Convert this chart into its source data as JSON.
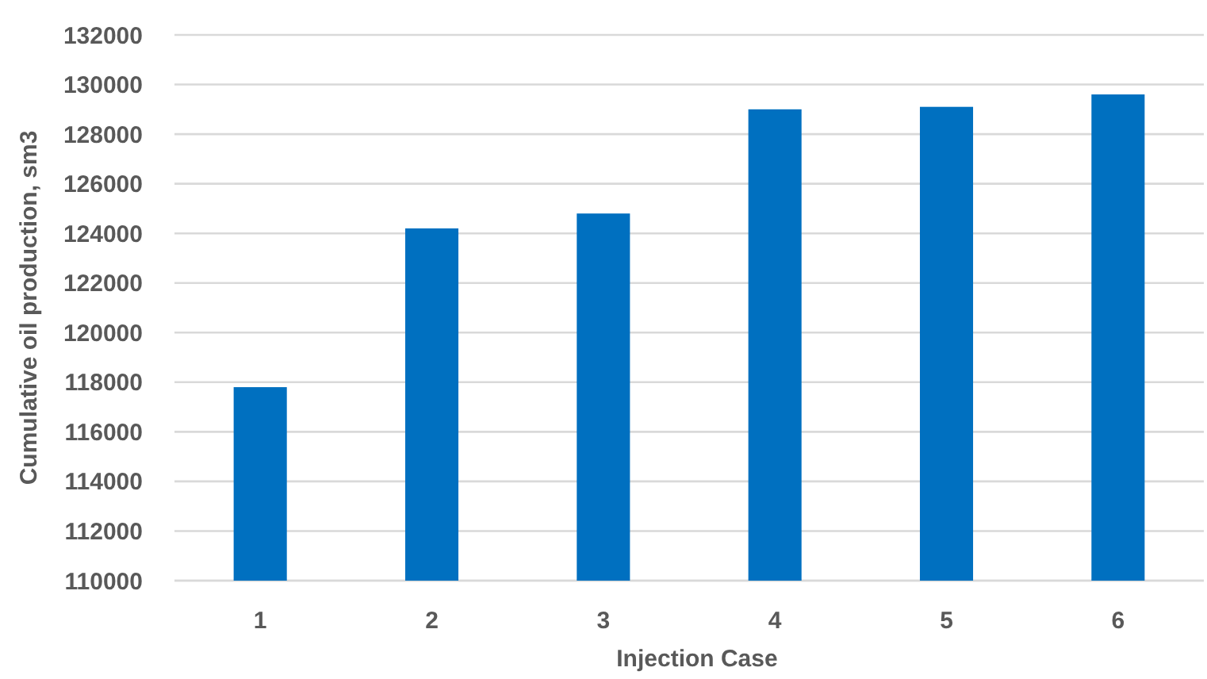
{
  "chart_data": {
    "type": "bar",
    "xlabel": "Injection Case",
    "ylabel": "Cumulative oil production, sm3",
    "categories": [
      "1",
      "2",
      "3",
      "4",
      "5",
      "6"
    ],
    "values": [
      117800,
      124200,
      124800,
      129000,
      129100,
      129600
    ],
    "color": "#0070c0",
    "ylim": [
      110000,
      132000
    ],
    "yticks": [
      110000,
      112000,
      114000,
      116000,
      118000,
      120000,
      122000,
      124000,
      126000,
      128000,
      130000,
      132000
    ],
    "grid": "y"
  }
}
